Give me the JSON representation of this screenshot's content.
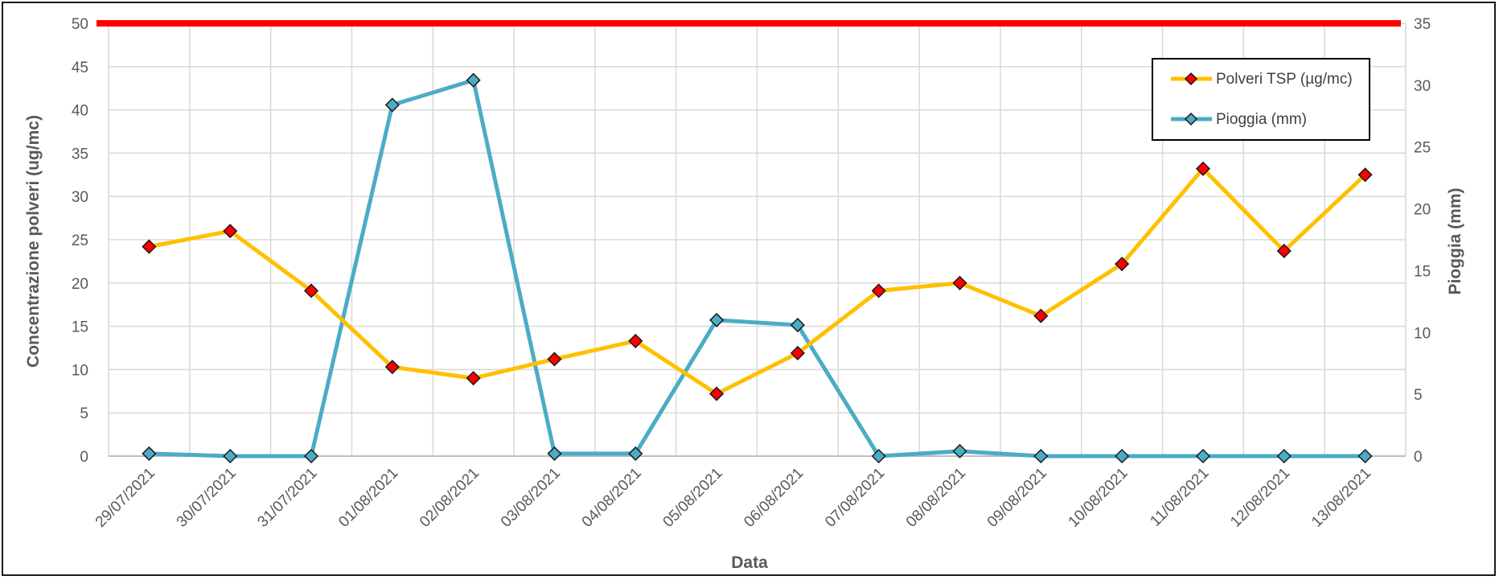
{
  "chart_data": {
    "type": "line",
    "xlabel": "Data",
    "ylabel_left": "Concentrazione polveri (ug/mc)",
    "ylabel_right": "Pioggia (mm)",
    "categories": [
      "29/07/2021",
      "30/07/2021",
      "31/07/2021",
      "01/08/2021",
      "02/08/2021",
      "03/08/2021",
      "04/08/2021",
      "05/08/2021",
      "06/08/2021",
      "07/08/2021",
      "08/08/2021",
      "09/08/2021",
      "10/08/2021",
      "11/08/2021",
      "12/08/2021",
      "13/08/2021"
    ],
    "ylim_left": [
      0,
      50
    ],
    "yticks_left": [
      "0",
      "5",
      "10",
      "15",
      "20",
      "25",
      "30",
      "35",
      "40",
      "45",
      "50"
    ],
    "ylim_right": [
      0,
      35
    ],
    "yticks_right": [
      "0",
      "5",
      "10",
      "15",
      "20",
      "25",
      "30",
      "35"
    ],
    "grid": true,
    "legend_position": "top-right",
    "threshold_line": {
      "value": 50,
      "axis": "left",
      "color": "#ff0000"
    },
    "series": [
      {
        "name": "Polveri TSP (µg/mc)",
        "axis": "left",
        "color": "#ffc000",
        "marker_color": "#ff0000",
        "values": [
          24.2,
          26.0,
          19.1,
          10.3,
          9.0,
          11.2,
          13.3,
          7.2,
          11.9,
          19.1,
          20.0,
          16.2,
          22.2,
          33.2,
          23.7,
          32.5
        ]
      },
      {
        "name": "Pioggia (mm)",
        "axis": "right",
        "color": "#4bacc6",
        "marker_color": "#4bacc6",
        "values": [
          0.2,
          0.0,
          0.0,
          28.4,
          30.4,
          0.2,
          0.2,
          11.0,
          10.6,
          0.0,
          0.4,
          0.0,
          0.0,
          0.0,
          0.0,
          0.0
        ]
      }
    ]
  }
}
